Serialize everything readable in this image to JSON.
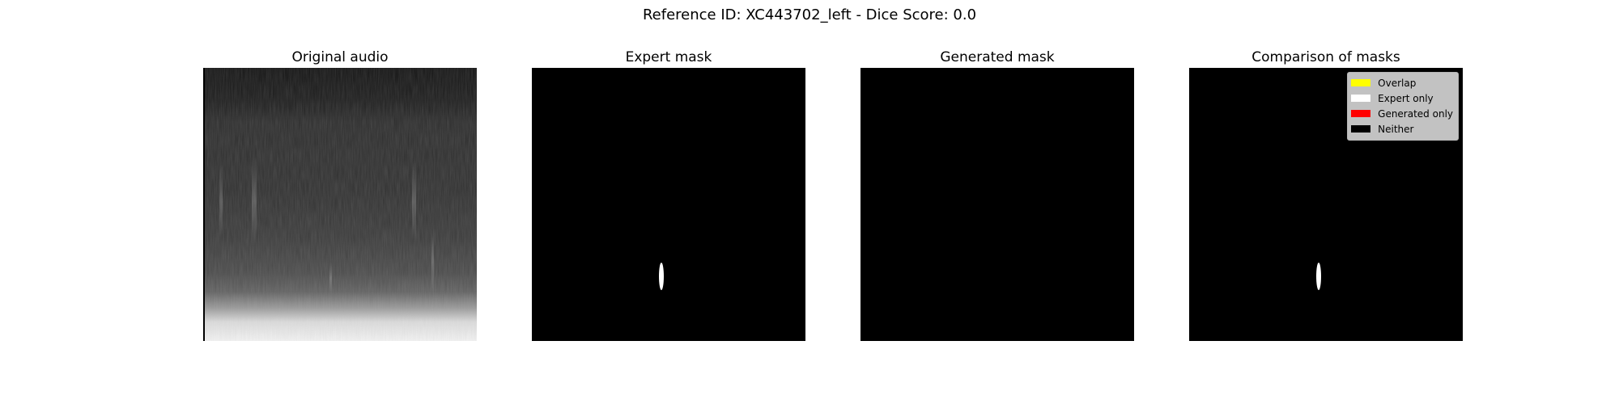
{
  "figure": {
    "title": "Reference ID: XC443702_left - Dice Score: 0.0"
  },
  "panels": [
    {
      "title": "Original audio"
    },
    {
      "title": "Expert mask"
    },
    {
      "title": "Generated mask"
    },
    {
      "title": "Comparison of masks"
    }
  ],
  "legend": {
    "items": [
      {
        "label": "Overlap",
        "color": "#ffff00"
      },
      {
        "label": "Expert only",
        "color": "#ffffff"
      },
      {
        "label": "Generated only",
        "color": "#ff0000"
      },
      {
        "label": "Neither",
        "color": "#000000"
      }
    ]
  }
}
